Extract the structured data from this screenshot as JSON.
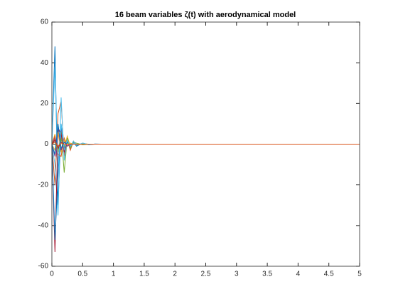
{
  "chart_data": {
    "type": "line",
    "title": "16 beam variables ζ(t) with aerodynamical model",
    "x": [
      0,
      0.05,
      0.1,
      0.15,
      0.2,
      0.25,
      0.3,
      0.35,
      0.4,
      0.5,
      0.6,
      0.7,
      0.8,
      1,
      5
    ],
    "series": [
      {
        "color": "#0072BD",
        "values": [
          0,
          48,
          -30,
          10,
          -5,
          3,
          -2,
          1,
          -1,
          0.5,
          -0.3,
          0.1,
          0,
          0,
          0
        ]
      },
      {
        "color": "#D95319",
        "values": [
          0,
          -20,
          15,
          21,
          -6,
          2,
          -3,
          1.5,
          -0.5,
          0.3,
          -0.1,
          0,
          0,
          0,
          0
        ]
      },
      {
        "color": "#EDB120",
        "values": [
          0,
          5,
          -8,
          3,
          -2,
          4,
          -1,
          0.5,
          -0.5,
          0.2,
          0,
          0,
          0,
          0,
          0
        ]
      },
      {
        "color": "#7E2F8E",
        "values": [
          0,
          3,
          -10,
          8,
          -3,
          1,
          -1,
          0.5,
          0,
          0,
          0,
          0,
          0,
          0,
          0
        ]
      },
      {
        "color": "#77AC30",
        "values": [
          0,
          2,
          -4,
          6,
          -14,
          3,
          -2,
          1,
          0.5,
          -0.3,
          0,
          0,
          0,
          0,
          0
        ]
      },
      {
        "color": "#4DBEEE",
        "values": [
          0,
          -10,
          -35,
          23,
          -8,
          2,
          -1,
          1.5,
          -0.5,
          0.5,
          -0.2,
          0,
          0,
          0,
          0
        ]
      },
      {
        "color": "#A2142F",
        "values": [
          0,
          -53,
          8,
          5,
          -4,
          1,
          -1,
          0.5,
          0,
          0,
          0,
          0,
          0,
          0,
          0
        ]
      },
      {
        "color": "#0072BD",
        "values": [
          0,
          -47,
          -15,
          9,
          -2,
          1,
          -0.5,
          0,
          0,
          0,
          0,
          0,
          0,
          0,
          0
        ]
      },
      {
        "color": "#D95319",
        "values": [
          0,
          4,
          -5,
          -6,
          3,
          -1,
          0.5,
          0,
          0,
          0,
          0,
          0,
          0,
          0,
          0
        ]
      },
      {
        "color": "#EDB120",
        "values": [
          0,
          -3,
          6,
          -4,
          2,
          -1,
          0.5,
          0,
          0,
          0,
          0,
          0,
          0,
          0,
          0
        ]
      },
      {
        "color": "#7E2F8E",
        "values": [
          0,
          -6,
          9,
          -3,
          1,
          -1,
          0,
          0,
          0,
          0,
          0,
          0,
          0,
          0,
          0
        ]
      },
      {
        "color": "#77AC30",
        "values": [
          0,
          1,
          -3,
          2,
          -1,
          0.5,
          0,
          0,
          0,
          0,
          0,
          0,
          0,
          0,
          0
        ]
      },
      {
        "color": "#4DBEEE",
        "values": [
          0,
          38,
          -12,
          10,
          -3,
          2,
          -1,
          0.5,
          0,
          0,
          0,
          0,
          0,
          0,
          0
        ]
      },
      {
        "color": "#A2142F",
        "values": [
          0,
          2,
          -2,
          1,
          0,
          0,
          0,
          0,
          0,
          0,
          0,
          0,
          0,
          0,
          0
        ]
      },
      {
        "color": "#0072BD",
        "values": [
          0,
          -5,
          10,
          -2,
          1,
          0,
          0,
          0,
          0,
          0,
          0,
          0,
          0,
          0,
          0
        ]
      },
      {
        "color": "#D95319",
        "values": [
          0,
          1,
          -1,
          0.5,
          0,
          0,
          0,
          0,
          0,
          0,
          0,
          0,
          0,
          0,
          0
        ]
      }
    ],
    "xlim": [
      0,
      5
    ],
    "xticks": [
      0,
      0.5,
      1,
      1.5,
      2,
      2.5,
      3,
      3.5,
      4,
      4.5,
      5
    ],
    "ylim": [
      -60,
      60
    ],
    "yticks": [
      -60,
      -40,
      -20,
      0,
      20,
      40,
      60
    ],
    "grid": false
  }
}
